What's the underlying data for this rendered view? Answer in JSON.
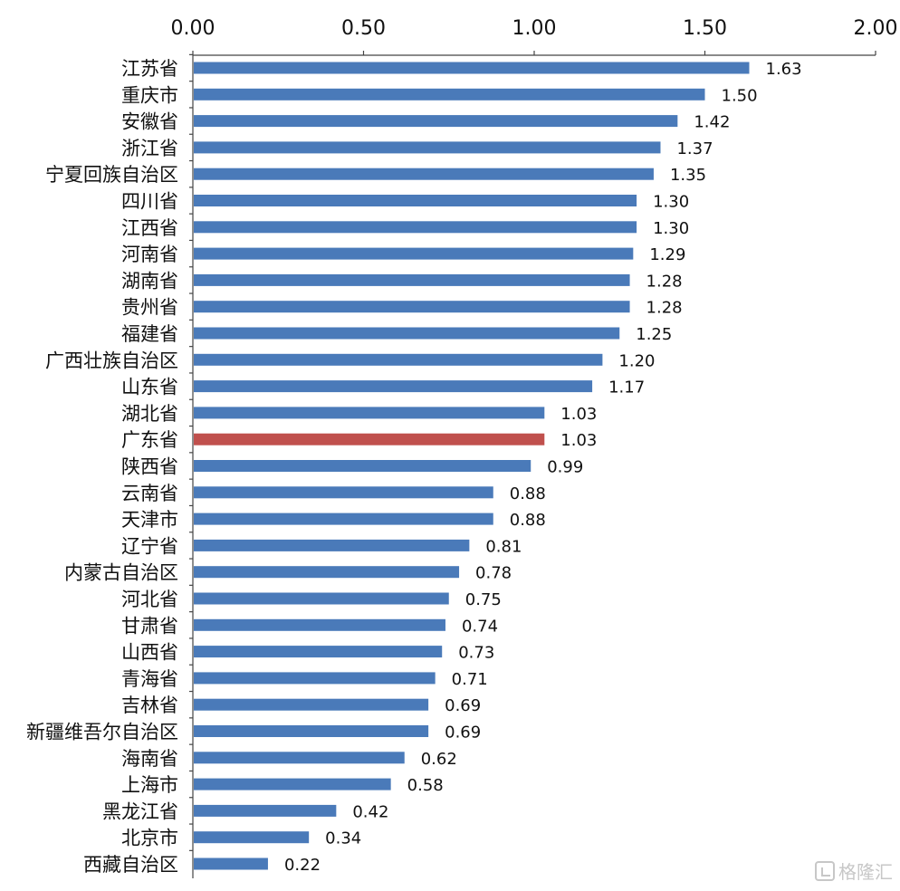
{
  "chart_data": {
    "type": "bar",
    "orientation": "horizontal",
    "x_ticks": [
      "0.00",
      "0.50",
      "1.00",
      "1.50",
      "2.00"
    ],
    "xlim": [
      0,
      2.0
    ],
    "grid": false,
    "categories": [
      "江苏省",
      "重庆市",
      "安徽省",
      "浙江省",
      "宁夏回族自治区",
      "四川省",
      "江西省",
      "河南省",
      "湖南省",
      "贵州省",
      "福建省",
      "广西壮族自治区",
      "山东省",
      "湖北省",
      "广东省",
      "陕西省",
      "云南省",
      "天津市",
      "辽宁省",
      "内蒙古自治区",
      "河北省",
      "甘肃省",
      "山西省",
      "青海省",
      "吉林省",
      "新疆维吾尔自治区",
      "海南省",
      "上海市",
      "黑龙江省",
      "北京市",
      "西藏自治区"
    ],
    "values": [
      1.63,
      1.5,
      1.42,
      1.37,
      1.35,
      1.3,
      1.3,
      1.29,
      1.28,
      1.28,
      1.25,
      1.2,
      1.17,
      1.03,
      1.03,
      0.99,
      0.88,
      0.88,
      0.81,
      0.78,
      0.75,
      0.74,
      0.73,
      0.71,
      0.69,
      0.69,
      0.62,
      0.58,
      0.42,
      0.34,
      0.22
    ],
    "value_labels": [
      "1.63",
      "1.50",
      "1.42",
      "1.37",
      "1.35",
      "1.30",
      "1.30",
      "1.29",
      "1.28",
      "1.28",
      "1.25",
      "1.20",
      "1.17",
      "1.03",
      "1.03",
      "0.99",
      "0.88",
      "0.88",
      "0.81",
      "0.78",
      "0.75",
      "0.74",
      "0.73",
      "0.71",
      "0.69",
      "0.69",
      "0.62",
      "0.58",
      "0.42",
      "0.34",
      "0.22"
    ],
    "highlight_category": "广东省",
    "bar_color": "#4a7ab9",
    "highlight_color": "#c0504d"
  },
  "watermark": {
    "text": "格隆汇",
    "icon": "gelonghui-logo-icon"
  }
}
